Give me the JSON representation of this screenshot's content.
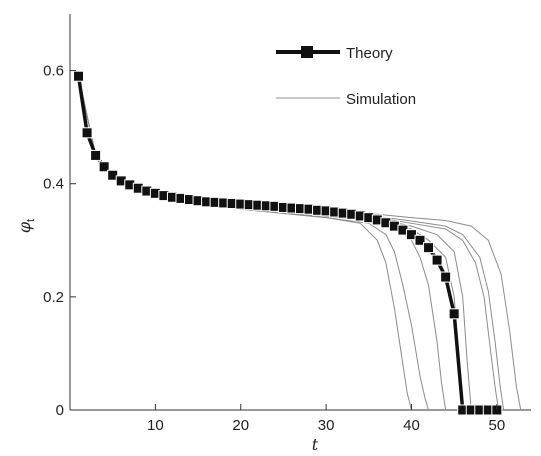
{
  "chart_data": {
    "type": "line",
    "xlabel": "t",
    "ylabel": "φ",
    "ylabel_subscript": "t",
    "xlim": [
      0,
      54
    ],
    "ylim": [
      0,
      0.7
    ],
    "x_ticks": [
      10,
      20,
      30,
      40,
      50
    ],
    "x_tick_labels": [
      "10",
      "20",
      "30",
      "40",
      "50"
    ],
    "y_ticks": [
      0,
      0.2,
      0.4,
      0.6
    ],
    "y_tick_labels": [
      "0",
      "0.2",
      "0.4",
      "0.6"
    ],
    "legend": {
      "position": "top-right",
      "entries": [
        "Theory",
        "Simulation"
      ]
    },
    "colors": {
      "theory": "#111111",
      "simulation": "#8c8c8c"
    },
    "series": [
      {
        "name": "Theory",
        "marker": "square",
        "x": [
          1,
          2,
          3,
          4,
          5,
          6,
          7,
          8,
          9,
          10,
          11,
          12,
          13,
          14,
          15,
          16,
          17,
          18,
          19,
          20,
          21,
          22,
          23,
          24,
          25,
          26,
          27,
          28,
          29,
          30,
          31,
          32,
          33,
          34,
          35,
          36,
          37,
          38,
          39,
          40,
          41,
          42,
          43,
          44,
          45,
          46,
          47,
          48,
          49,
          50
        ],
        "y": [
          0.59,
          0.49,
          0.45,
          0.43,
          0.415,
          0.405,
          0.398,
          0.392,
          0.387,
          0.383,
          0.379,
          0.376,
          0.374,
          0.372,
          0.37,
          0.368,
          0.367,
          0.366,
          0.365,
          0.364,
          0.363,
          0.362,
          0.361,
          0.36,
          0.358,
          0.357,
          0.356,
          0.355,
          0.353,
          0.352,
          0.35,
          0.348,
          0.346,
          0.343,
          0.34,
          0.336,
          0.331,
          0.325,
          0.318,
          0.31,
          0.3,
          0.287,
          0.265,
          0.235,
          0.17,
          0.0,
          0.0,
          0.0,
          0.0,
          0.0
        ]
      },
      {
        "name": "Simulation",
        "x": [
          1,
          3,
          5,
          8,
          12,
          20,
          30,
          34,
          36,
          37,
          38,
          39,
          39.5,
          40
        ],
        "y": [
          0.59,
          0.45,
          0.41,
          0.385,
          0.37,
          0.355,
          0.34,
          0.33,
          0.3,
          0.26,
          0.18,
          0.08,
          0.03,
          0.0
        ]
      },
      {
        "x": [
          1,
          3,
          5,
          8,
          12,
          20,
          30,
          35,
          37,
          38,
          39,
          40,
          41,
          41.6,
          42
        ],
        "y": [
          0.59,
          0.45,
          0.41,
          0.385,
          0.37,
          0.355,
          0.34,
          0.33,
          0.31,
          0.28,
          0.22,
          0.15,
          0.06,
          0.02,
          0.0
        ]
      },
      {
        "x": [
          1,
          3,
          5,
          8,
          12,
          20,
          30,
          35,
          38,
          40,
          41,
          42,
          43,
          43.5,
          44
        ],
        "y": [
          0.59,
          0.45,
          0.41,
          0.385,
          0.37,
          0.355,
          0.342,
          0.335,
          0.325,
          0.3,
          0.27,
          0.22,
          0.12,
          0.05,
          0.0
        ]
      },
      {
        "x": [
          1,
          3,
          5,
          8,
          12,
          20,
          30,
          36,
          40,
          42,
          44,
          45,
          45.6,
          46
        ],
        "y": [
          0.59,
          0.45,
          0.41,
          0.386,
          0.372,
          0.358,
          0.345,
          0.335,
          0.32,
          0.3,
          0.27,
          0.2,
          0.08,
          0.0
        ]
      },
      {
        "x": [
          1,
          3,
          5,
          8,
          12,
          20,
          30,
          36,
          40,
          43,
          45,
          46,
          46.5,
          47
        ],
        "y": [
          0.59,
          0.45,
          0.41,
          0.387,
          0.373,
          0.36,
          0.347,
          0.338,
          0.325,
          0.31,
          0.28,
          0.2,
          0.09,
          0.0
        ]
      },
      {
        "x": [
          1,
          3,
          5,
          8,
          12,
          20,
          30,
          36,
          40,
          44,
          46,
          47.5,
          48.5,
          49.3,
          49.8,
          50.2
        ],
        "y": [
          0.59,
          0.45,
          0.41,
          0.387,
          0.373,
          0.36,
          0.348,
          0.34,
          0.33,
          0.32,
          0.3,
          0.26,
          0.2,
          0.1,
          0.04,
          0.0
        ]
      },
      {
        "x": [
          1,
          3,
          5,
          8,
          12,
          20,
          30,
          36,
          40,
          44,
          46,
          48,
          49,
          49.8,
          50.4,
          50.8
        ],
        "y": [
          0.59,
          0.45,
          0.41,
          0.387,
          0.373,
          0.36,
          0.349,
          0.342,
          0.334,
          0.325,
          0.31,
          0.27,
          0.21,
          0.12,
          0.04,
          0.0
        ]
      },
      {
        "x": [
          1,
          3,
          5,
          8,
          12,
          20,
          30,
          36,
          40,
          44,
          47,
          49,
          50.5,
          51.5,
          52.3,
          52.8
        ],
        "y": [
          0.59,
          0.45,
          0.41,
          0.388,
          0.374,
          0.362,
          0.352,
          0.346,
          0.34,
          0.335,
          0.325,
          0.3,
          0.24,
          0.14,
          0.04,
          0.0
        ]
      }
    ]
  }
}
